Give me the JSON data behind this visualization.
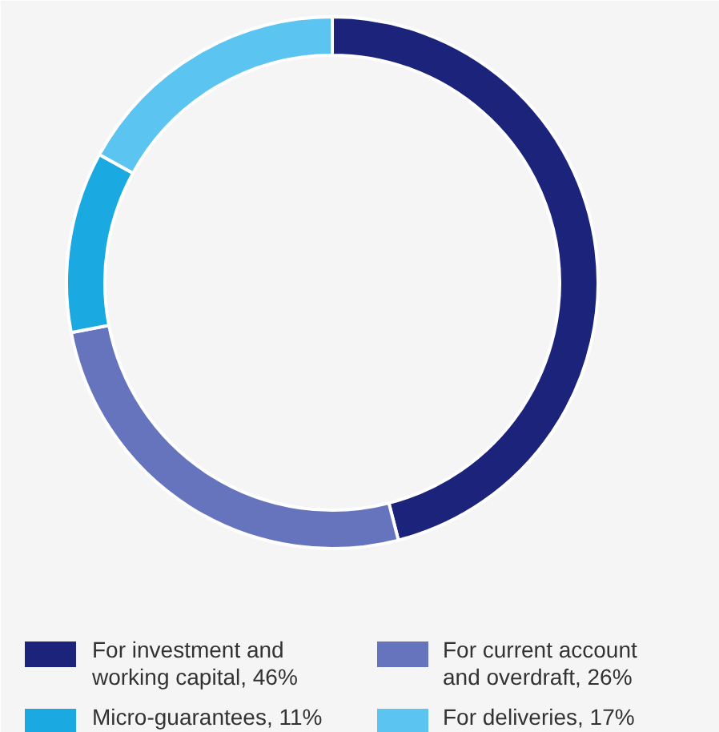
{
  "chart_data": {
    "type": "donut",
    "categories": [
      "For investment and working capital, 46%",
      "For current account and overdraft, 26%",
      "Micro-guarantees, 11%",
      "For deliveries, 17%"
    ],
    "values": [
      46,
      26,
      11,
      17
    ],
    "colors": [
      "#1b237b",
      "#6574bd",
      "#1aa9e0",
      "#5bc4f1"
    ],
    "legend": "bottom"
  }
}
